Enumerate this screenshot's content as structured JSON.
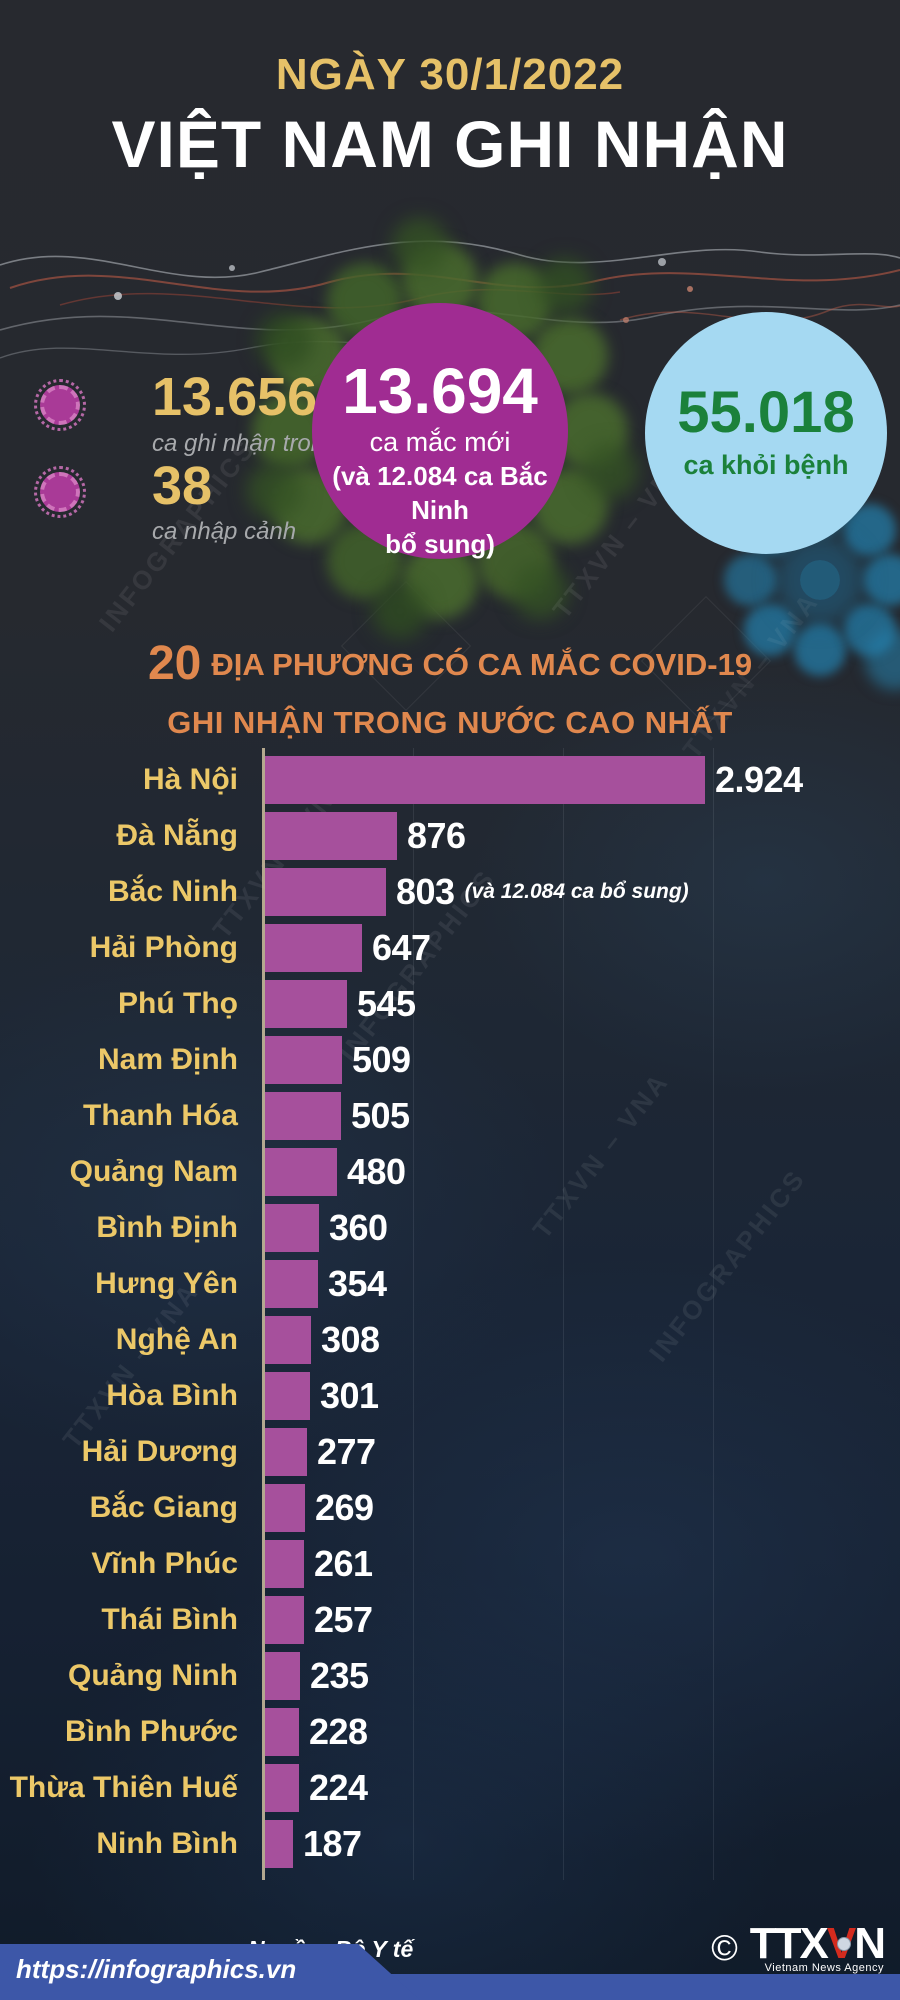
{
  "header": {
    "date_line": "NGÀY 30/1/2022",
    "title": "VIỆT NAM GHI NHẬN"
  },
  "stats": {
    "domestic": {
      "value": "13.656",
      "label": "ca ghi nhận trong nước"
    },
    "imported": {
      "value": "38",
      "label": "ca nhập cảnh"
    },
    "new_cases": {
      "value": "13.694",
      "label": "ca mắc mới",
      "note_line1": "(và 12.084 ca Bắc Ninh",
      "note_line2": "bổ sung)"
    },
    "recovered": {
      "value": "55.018",
      "label": "ca khỏi bệnh"
    }
  },
  "chart": {
    "heading_number": "20",
    "heading_line1": "ĐỊA PHƯƠNG CÓ CA MẮC COVID-19",
    "heading_line2": "GHI NHẬN TRONG NƯỚC CAO NHẤT"
  },
  "chart_data": {
    "type": "bar",
    "orientation": "horizontal",
    "title": "20 địa phương có ca mắc COVID-19 ghi nhận trong nước cao nhất",
    "categories": [
      "Hà Nội",
      "Đà Nẵng",
      "Bắc Ninh",
      "Hải Phòng",
      "Phú Thọ",
      "Nam Định",
      "Thanh Hóa",
      "Quảng Nam",
      "Bình Định",
      "Hưng Yên",
      "Nghệ An",
      "Hòa Bình",
      "Hải Dương",
      "Bắc Giang",
      "Vĩnh Phúc",
      "Thái Bình",
      "Quảng Ninh",
      "Bình Phước",
      "Thừa Thiên Huế",
      "Ninh Bình"
    ],
    "values": [
      2924,
      876,
      803,
      647,
      545,
      509,
      505,
      480,
      360,
      354,
      308,
      301,
      277,
      269,
      261,
      257,
      235,
      228,
      224,
      187
    ],
    "value_labels": [
      "2.924",
      "876",
      "803",
      "647",
      "545",
      "509",
      "505",
      "480",
      "360",
      "354",
      "308",
      "301",
      "277",
      "269",
      "261",
      "257",
      "235",
      "228",
      "224",
      "187"
    ],
    "bar_notes": [
      "",
      "",
      "(và 12.084 ca bổ sung)",
      "",
      "",
      "",
      "",
      "",
      "",
      "",
      "",
      "",
      "",
      "",
      "",
      "",
      "",
      "",
      "",
      ""
    ],
    "xlim": [
      0,
      3000
    ],
    "gridlines_every": 1000,
    "legend": "none",
    "bar_color": "#a6509c",
    "label_color": "#ecc868",
    "value_color": "#ffffff"
  },
  "footer": {
    "source": "Nguồn: Bộ Y tế",
    "url": "https://infographics.vn",
    "copyright": "©",
    "logo_part1": "TTX",
    "logo_part2": "V",
    "logo_part3": "N",
    "logo_sub": "Vietnam News Agency"
  },
  "watermarks": [
    "TTXVN – VNA",
    "INFOGRAPHICS"
  ],
  "colors": {
    "background_top": "#26292f",
    "background_bottom": "#101b29",
    "gold": "#e6c168",
    "orange_heading": "#e0884e",
    "purple_circle": "#a02c92",
    "bar_purple": "#a6509c",
    "recovered_circle_bg": "#a5d9f2",
    "recovered_green": "#1b813b",
    "footer_blue": "#3d57a8",
    "logo_red": "#d42b1e"
  }
}
